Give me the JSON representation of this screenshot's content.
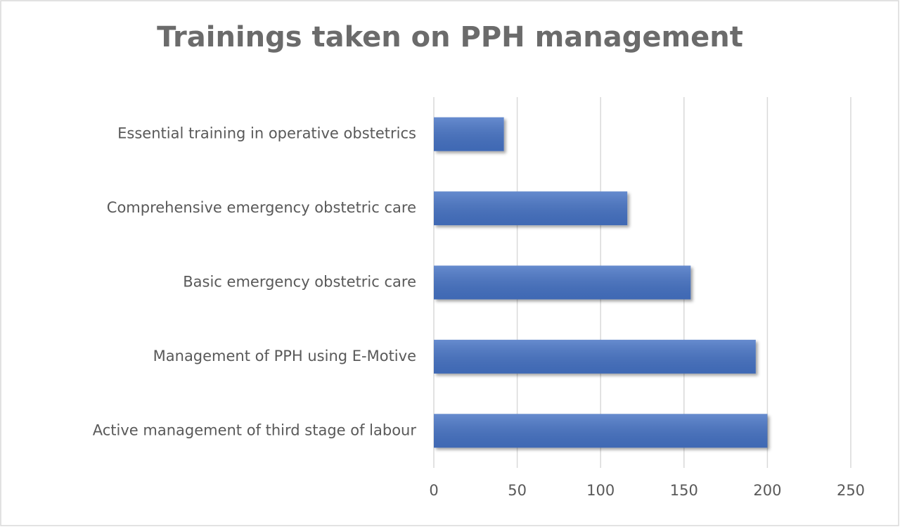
{
  "chart_data": {
    "type": "barh",
    "title": "Trainings taken on PPH management",
    "categories": [
      "Essential training in operative obstetrics",
      "Comprehensive emergency obstetric care",
      "Basic emergency obstetric care",
      "Management of PPH using E-Motive",
      "Active management of third stage of labour"
    ],
    "values": [
      42,
      116,
      154,
      193,
      200
    ],
    "color": "#4472c4",
    "xlim": [
      0,
      250
    ],
    "xticks": [
      0,
      50,
      100,
      150,
      200,
      250
    ],
    "grid": true
  }
}
